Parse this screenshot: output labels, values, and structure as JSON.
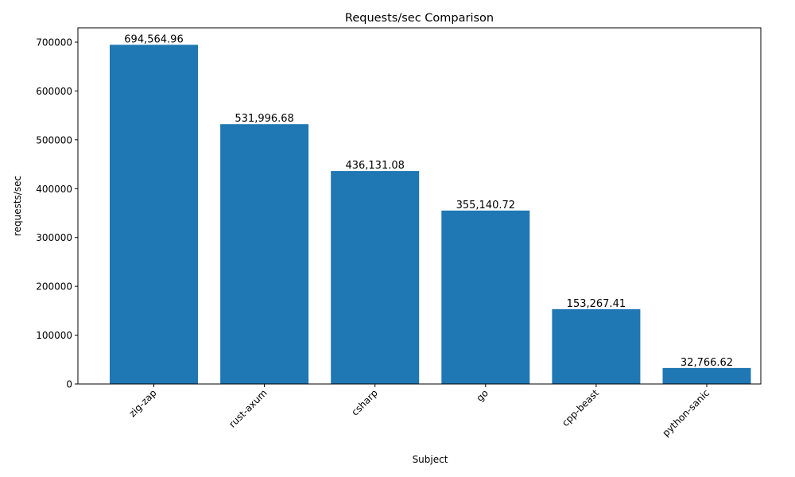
{
  "chart_data": {
    "type": "bar",
    "title": "Requests/sec Comparison",
    "xlabel": "Subject",
    "ylabel": "requests/sec",
    "categories": [
      "zig-zap",
      "rust-axum",
      "csharp",
      "go",
      "cpp-beast",
      "python-sanic"
    ],
    "values": [
      694564.96,
      531996.68,
      436131.08,
      355140.72,
      153267.41,
      32766.62
    ],
    "data_labels": [
      "694,564.96",
      "531,996.68",
      "436,131.08",
      "355,140.72",
      "153,267.41",
      "32,766.62"
    ],
    "ylim": [
      0,
      729293
    ],
    "yticks": [
      0,
      100000,
      200000,
      300000,
      400000,
      500000,
      600000,
      700000
    ],
    "ytick_labels": [
      "0",
      "100000",
      "200000",
      "300000",
      "400000",
      "500000",
      "600000",
      "700000"
    ],
    "bar_color": "#1f77b4",
    "grid": false,
    "xtick_rotation_deg": 45
  }
}
